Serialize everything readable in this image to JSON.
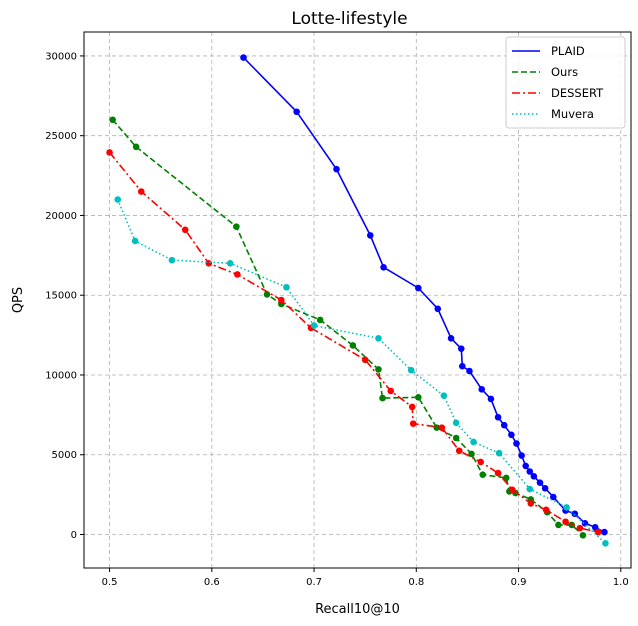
{
  "chart_data": {
    "type": "line",
    "title": "Lotte-lifestyle",
    "xlabel": "Recall10@10",
    "ylabel": "QPS",
    "xlim": [
      0.475,
      1.01
    ],
    "ylim": [
      -2100,
      31500
    ],
    "xticks": [
      0.5,
      0.6,
      0.7,
      0.8,
      0.9,
      1.0
    ],
    "xtick_labels": [
      "0.5",
      "0.6",
      "0.7",
      "0.8",
      "0.9",
      "1.0"
    ],
    "yticks": [
      0,
      5000,
      10000,
      15000,
      20000,
      25000,
      30000
    ],
    "ytick_labels": [
      "0",
      "5000",
      "10000",
      "15000",
      "20000",
      "25000",
      "30000"
    ],
    "grid": true,
    "legend_position": "top-right",
    "series": [
      {
        "name": "PLAID",
        "color": "#0000ff",
        "dash": "solid",
        "points": [
          [
            0.631,
            29900
          ],
          [
            0.683,
            26500
          ],
          [
            0.722,
            22900
          ],
          [
            0.755,
            18750
          ],
          [
            0.768,
            16750
          ],
          [
            0.802,
            15450
          ],
          [
            0.821,
            14150
          ],
          [
            0.834,
            12300
          ],
          [
            0.844,
            11650
          ],
          [
            0.845,
            10550
          ],
          [
            0.852,
            10250
          ],
          [
            0.864,
            9100
          ],
          [
            0.873,
            8500
          ],
          [
            0.88,
            7350
          ],
          [
            0.886,
            6850
          ],
          [
            0.893,
            6250
          ],
          [
            0.898,
            5700
          ],
          [
            0.903,
            4950
          ],
          [
            0.907,
            4300
          ],
          [
            0.911,
            3950
          ],
          [
            0.915,
            3650
          ],
          [
            0.921,
            3250
          ],
          [
            0.926,
            2900
          ],
          [
            0.934,
            2350
          ],
          [
            0.946,
            1500
          ],
          [
            0.955,
            1300
          ],
          [
            0.965,
            700
          ],
          [
            0.975,
            450
          ],
          [
            0.984,
            150
          ]
        ]
      },
      {
        "name": "Ours",
        "color": "#008000",
        "dash": "dashed",
        "points": [
          [
            0.503,
            26000
          ],
          [
            0.526,
            24300
          ],
          [
            0.624,
            19300
          ],
          [
            0.654,
            15050
          ],
          [
            0.668,
            14450
          ],
          [
            0.706,
            13450
          ],
          [
            0.738,
            11850
          ],
          [
            0.763,
            10350
          ],
          [
            0.767,
            8550
          ],
          [
            0.802,
            8600
          ],
          [
            0.82,
            6700
          ],
          [
            0.839,
            6050
          ],
          [
            0.854,
            5050
          ],
          [
            0.865,
            3750
          ],
          [
            0.888,
            3550
          ],
          [
            0.891,
            2700
          ],
          [
            0.897,
            2600
          ],
          [
            0.912,
            2200
          ],
          [
            0.928,
            1400
          ],
          [
            0.939,
            600
          ],
          [
            0.952,
            600
          ],
          [
            0.963,
            -50
          ]
        ]
      },
      {
        "name": "DESSERT",
        "color": "#ff0000",
        "dash": "dashdot",
        "points": [
          [
            0.5,
            23950
          ],
          [
            0.531,
            21500
          ],
          [
            0.574,
            19100
          ],
          [
            0.597,
            17000
          ],
          [
            0.625,
            16300
          ],
          [
            0.668,
            14700
          ],
          [
            0.697,
            12950
          ],
          [
            0.75,
            10950
          ],
          [
            0.775,
            9000
          ],
          [
            0.796,
            8000
          ],
          [
            0.797,
            6950
          ],
          [
            0.825,
            6700
          ],
          [
            0.842,
            5250
          ],
          [
            0.863,
            4550
          ],
          [
            0.88,
            3850
          ],
          [
            0.894,
            2800
          ],
          [
            0.912,
            1950
          ],
          [
            0.927,
            1550
          ],
          [
            0.946,
            800
          ],
          [
            0.96,
            400
          ],
          [
            0.978,
            150
          ]
        ]
      },
      {
        "name": "Muvera",
        "color": "#00bfbf",
        "dash": "dotted",
        "points": [
          [
            0.508,
            21000
          ],
          [
            0.525,
            18400
          ],
          [
            0.561,
            17200
          ],
          [
            0.618,
            17000
          ],
          [
            0.673,
            15500
          ],
          [
            0.7,
            13100
          ],
          [
            0.763,
            12300
          ],
          [
            0.795,
            10300
          ],
          [
            0.827,
            8700
          ],
          [
            0.839,
            7000
          ],
          [
            0.856,
            5800
          ],
          [
            0.881,
            5100
          ],
          [
            0.911,
            2850
          ],
          [
            0.947,
            1700
          ],
          [
            0.985,
            -550
          ]
        ]
      }
    ]
  }
}
